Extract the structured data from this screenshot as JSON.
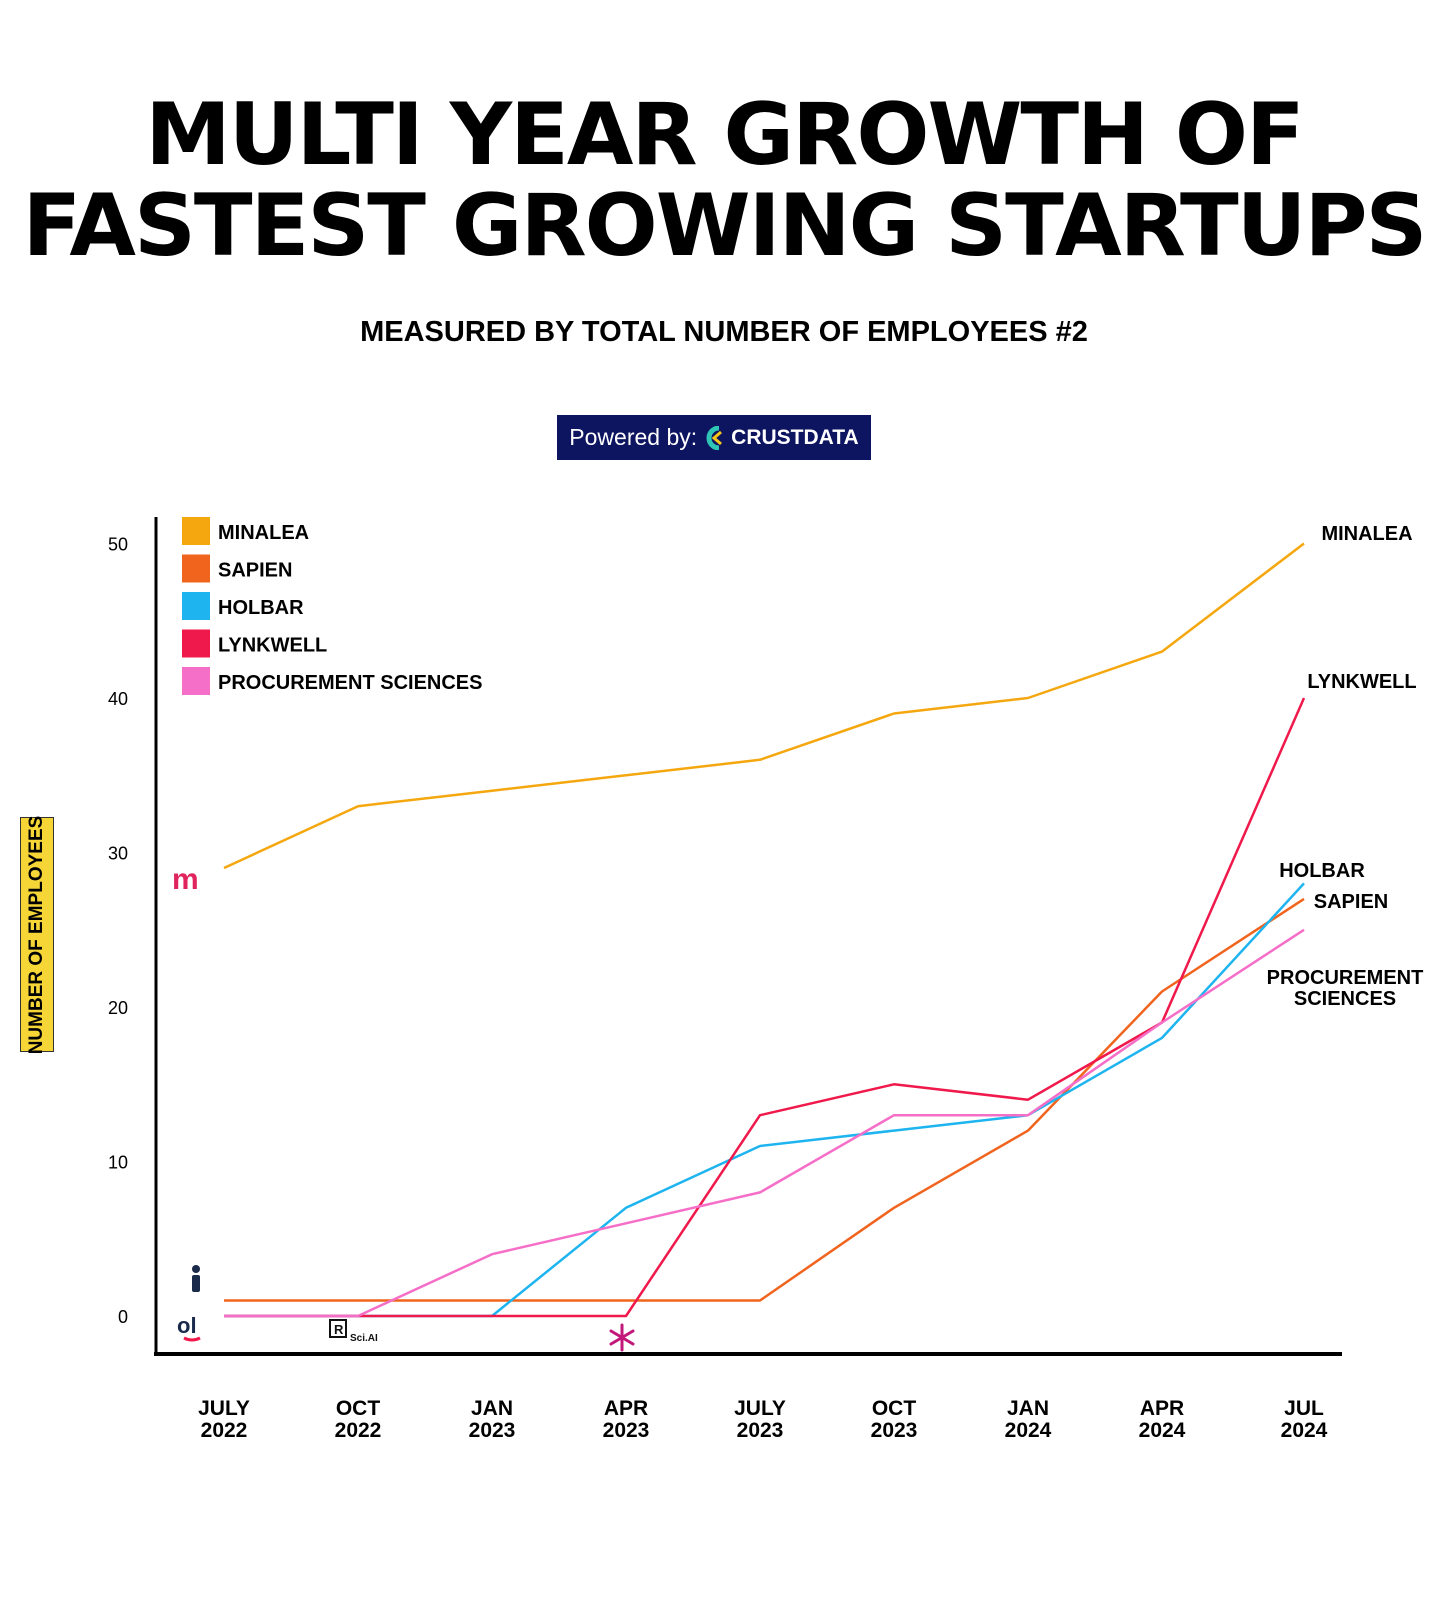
{
  "header": {
    "title_line1": "MULTI YEAR GROWTH OF",
    "title_line2": "FASTEST GROWING STARTUPS",
    "subtitle": "MEASURED BY TOTAL NUMBER OF EMPLOYEES #2",
    "powered_label": "Powered by:",
    "powered_brand": "CRUSTDATA",
    "brand_colors": {
      "banner_bg": "#0d1460"
    }
  },
  "chart_data": {
    "type": "line",
    "title": "MULTI YEAR GROWTH OF FASTEST GROWING STARTUPS",
    "subtitle": "MEASURED BY TOTAL NUMBER OF EMPLOYEES #2",
    "ylabel": "NUMBER OF EMPLOYEES",
    "xlabel": "",
    "categories": [
      "JULY 2022",
      "OCT 2022",
      "JAN 2023",
      "APR 2023",
      "JULY 2023",
      "OCT 2023",
      "JAN 2024",
      "APR 2024",
      "JUL 2024"
    ],
    "category_labels": [
      [
        "JULY",
        "2022"
      ],
      [
        "OCT",
        "2022"
      ],
      [
        "JAN",
        "2023"
      ],
      [
        "APR",
        "2023"
      ],
      [
        "JULY",
        "2023"
      ],
      [
        "OCT",
        "2023"
      ],
      [
        "JAN",
        "2024"
      ],
      [
        "APR",
        "2024"
      ],
      [
        "JUL",
        "2024"
      ]
    ],
    "ylim": [
      0,
      50
    ],
    "yticks": [
      0,
      10,
      20,
      30,
      40,
      50
    ],
    "grid": false,
    "legend_position": "top-left",
    "series": [
      {
        "name": "MINALEA",
        "end_label": [
          "MINALEA"
        ],
        "color": "#f5a70f",
        "values": [
          29,
          33,
          34,
          35,
          36,
          39,
          40,
          43,
          50
        ]
      },
      {
        "name": "SAPIEN",
        "end_label": [
          "SAPIEN"
        ],
        "color": "#f0641e",
        "values": [
          1,
          1,
          1,
          1,
          1,
          7,
          12,
          21,
          27
        ]
      },
      {
        "name": "HOLBAR",
        "end_label": [
          "HOLBAR"
        ],
        "color": "#1eb4f0",
        "values": [
          0,
          0,
          0,
          7,
          11,
          12,
          13,
          18,
          28
        ]
      },
      {
        "name": "LYNKWELL",
        "end_label": [
          "LYNKWELL"
        ],
        "color": "#f0194b",
        "values": [
          0,
          0,
          0,
          0,
          13,
          15,
          14,
          19,
          40
        ]
      },
      {
        "name": "PROCUREMENT SCIENCES",
        "end_label": [
          "PROCUREMENT",
          "SCIENCES"
        ],
        "color": "#f56ec8",
        "values": [
          0,
          0,
          4,
          6,
          8,
          13,
          13,
          19,
          25
        ]
      }
    ]
  }
}
